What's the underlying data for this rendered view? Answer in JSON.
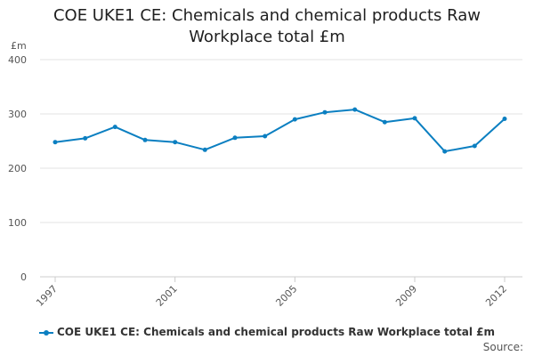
{
  "chart_data": {
    "type": "line",
    "title": "COE UKE1 CE: Chemicals and chemical products Raw Workplace total £m",
    "title_lines": [
      "COE UKE1 CE: Chemicals and chemical products Raw",
      "Workplace total £m"
    ],
    "ylabel": "£m",
    "xlabel": "",
    "ylim": [
      0,
      400
    ],
    "yticks": [
      "0",
      "100",
      "200",
      "300",
      "400"
    ],
    "xlim": [
      1997,
      2012
    ],
    "xticks": [
      "1997",
      "2001",
      "2005",
      "2009",
      "2012"
    ],
    "grid": true,
    "legend_position": "bottom",
    "series": [
      {
        "name": "COE UKE1 CE: Chemicals and chemical products Raw Workplace total £m",
        "color": "#0b7fc1",
        "x": [
          1997,
          1998,
          1999,
          2000,
          2001,
          2002,
          2003,
          2004,
          2005,
          2006,
          2007,
          2008,
          2009,
          2010,
          2011,
          2012
        ],
        "values": [
          248,
          255,
          276,
          252,
          248,
          234,
          256,
          259,
          290,
          303,
          308,
          285,
          292,
          231,
          241,
          291
        ]
      }
    ]
  },
  "source_label": "Source:"
}
